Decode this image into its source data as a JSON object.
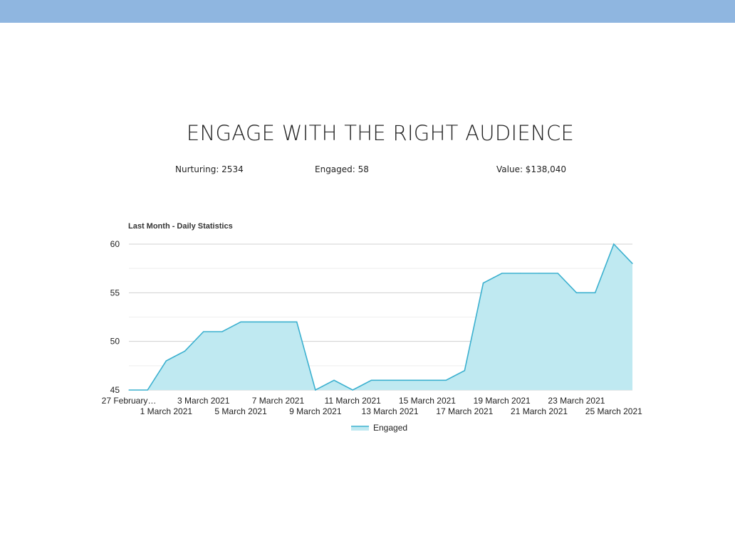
{
  "colors": {
    "top_bar": "#8fb6e0",
    "series_line": "#3bb0cf",
    "series_fill": "#bfe9f1",
    "grid": "#d0d0d0",
    "minor_grid": "#eeeeee"
  },
  "page": {
    "title": "ENGAGE WITH THE RIGHT AUDIENCE"
  },
  "stats": {
    "nurturing": "Nurturing: 2534",
    "engaged": "Engaged: 58",
    "value": "Value: $138,040"
  },
  "chart_data": {
    "type": "area",
    "title": "Last Month - Daily Statistics",
    "xlabel": "",
    "ylabel": "",
    "ylim": [
      45,
      60
    ],
    "y_ticks": [
      45,
      50,
      55,
      60
    ],
    "grid": true,
    "legend_position": "bottom",
    "x": [
      "27 February 2021",
      "28 February 2021",
      "1 March 2021",
      "2 March 2021",
      "3 March 2021",
      "4 March 2021",
      "5 March 2021",
      "6 March 2021",
      "7 March 2021",
      "8 March 2021",
      "9 March 2021",
      "10 March 2021",
      "11 March 2021",
      "12 March 2021",
      "13 March 2021",
      "14 March 2021",
      "15 March 2021",
      "16 March 2021",
      "17 March 2021",
      "18 March 2021",
      "19 March 2021",
      "20 March 2021",
      "21 March 2021",
      "22 March 2021",
      "23 March 2021",
      "24 March 2021",
      "25 March 2021",
      "26 March 2021"
    ],
    "x_tick_labels_row1": [
      {
        "index": 0,
        "label": "27 February…"
      },
      {
        "index": 4,
        "label": "3 March 2021"
      },
      {
        "index": 8,
        "label": "7 March 2021"
      },
      {
        "index": 12,
        "label": "11 March 2021"
      },
      {
        "index": 16,
        "label": "15 March 2021"
      },
      {
        "index": 20,
        "label": "19 March 2021"
      },
      {
        "index": 24,
        "label": "23 March 2021"
      }
    ],
    "x_tick_labels_row2": [
      {
        "index": 2,
        "label": "1 March 2021"
      },
      {
        "index": 6,
        "label": "5 March 2021"
      },
      {
        "index": 10,
        "label": "9 March 2021"
      },
      {
        "index": 14,
        "label": "13 March 2021"
      },
      {
        "index": 18,
        "label": "17 March 2021"
      },
      {
        "index": 22,
        "label": "21 March 2021"
      },
      {
        "index": 26,
        "label": "25 March 2021"
      }
    ],
    "series": [
      {
        "name": "Engaged",
        "values": [
          45,
          45,
          48,
          49,
          51,
          51,
          52,
          52,
          52,
          52,
          45,
          46,
          45,
          46,
          46,
          46,
          46,
          46,
          47,
          56,
          57,
          57,
          57,
          57,
          55,
          55,
          60,
          58
        ]
      }
    ]
  }
}
